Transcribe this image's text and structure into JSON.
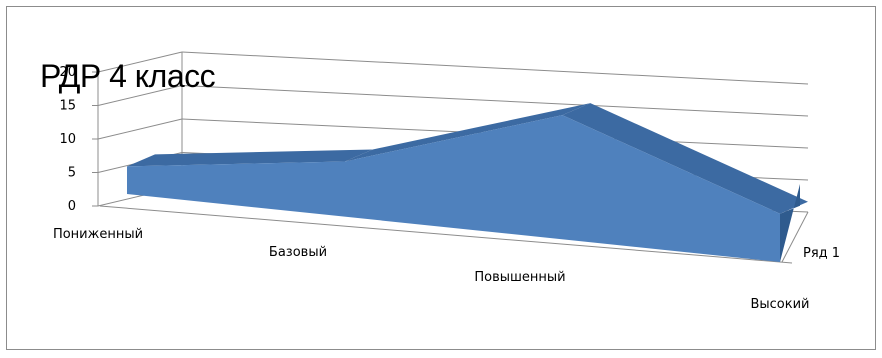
{
  "chart_data": {
    "type": "area",
    "title": "РДР 4 класс",
    "categories": [
      "Пониженный",
      "Базовый",
      "Повышенный",
      "Высокий"
    ],
    "series": [
      {
        "name": "Ряд 1",
        "values": [
          4,
          8,
          18,
          7
        ]
      }
    ],
    "ylim": [
      0,
      20
    ],
    "yticks": [
      0,
      5,
      10,
      15,
      20
    ],
    "ytick_labels": [
      "0",
      "5",
      "10",
      "15",
      "20"
    ],
    "grid": true,
    "three_d": true,
    "colors": {
      "series": "#4f81bd",
      "series_top": "#3c6aa2",
      "series_side": "#2f5b8e",
      "grid": "#8c8c8c"
    }
  }
}
